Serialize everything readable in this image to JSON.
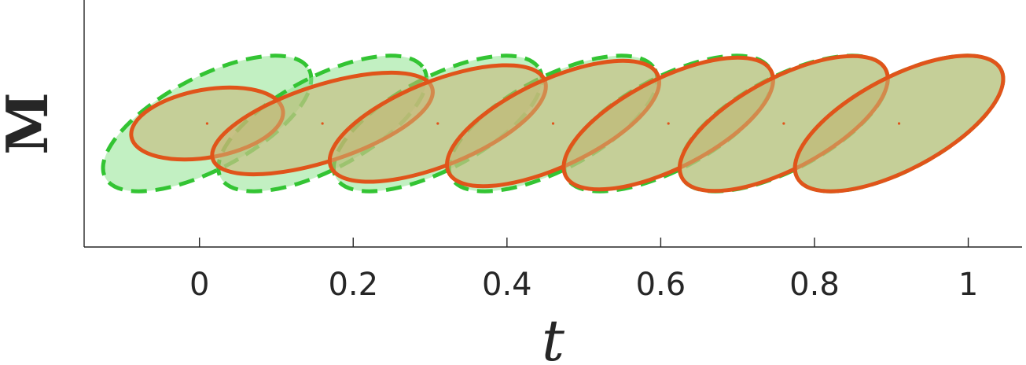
{
  "chart_data": {
    "type": "scatter",
    "title": "",
    "xlabel": "t",
    "ylabel": "M",
    "xlim": [
      -0.15,
      1.07
    ],
    "ylim": [
      -1.0,
      1.0
    ],
    "xticks": [
      0,
      0.2,
      0.4,
      0.6,
      0.8,
      1
    ],
    "xtick_labels": [
      "0",
      "0.2",
      "0.4",
      "0.6",
      "0.8",
      "1"
    ],
    "yticks_shown": false,
    "grid": false,
    "legend": "none",
    "centers_t": [
      0.01,
      0.16,
      0.31,
      0.46,
      0.61,
      0.76,
      0.91
    ],
    "center_m": 0.0,
    "series": [
      {
        "style": "dashed-outline-filled",
        "stroke_color": "#33c433",
        "fill_color": "#8fe38f",
        "ellipses": [
          {
            "t": 0.01,
            "m": 0.0,
            "semi_t": 0.15,
            "semi_m": 0.68,
            "tilt_deg": 28
          },
          {
            "t": 0.16,
            "m": 0.0,
            "semi_t": 0.15,
            "semi_m": 0.68,
            "tilt_deg": 28
          },
          {
            "t": 0.31,
            "m": 0.0,
            "semi_t": 0.15,
            "semi_m": 0.68,
            "tilt_deg": 28
          },
          {
            "t": 0.46,
            "m": 0.0,
            "semi_t": 0.15,
            "semi_m": 0.68,
            "tilt_deg": 28
          },
          {
            "t": 0.61,
            "m": 0.0,
            "semi_t": 0.15,
            "semi_m": 0.68,
            "tilt_deg": 28
          },
          {
            "t": 0.76,
            "m": 0.0,
            "semi_t": 0.15,
            "semi_m": 0.68,
            "tilt_deg": 28
          },
          {
            "t": 0.91,
            "m": 0.0,
            "semi_t": 0.15,
            "semi_m": 0.68,
            "tilt_deg": 28
          }
        ]
      },
      {
        "style": "solid-outline-filled",
        "stroke_color": "#e0541a",
        "fill_color": "#c9b477",
        "ellipses": [
          {
            "t": 0.01,
            "m": 0.0,
            "semi_t": 0.1,
            "semi_m": 0.5,
            "tilt_deg": 10
          },
          {
            "t": 0.16,
            "m": 0.0,
            "semi_t": 0.15,
            "semi_m": 0.56,
            "tilt_deg": 18
          },
          {
            "t": 0.31,
            "m": 0.0,
            "semi_t": 0.15,
            "semi_m": 0.62,
            "tilt_deg": 22
          },
          {
            "t": 0.46,
            "m": 0.0,
            "semi_t": 0.15,
            "semi_m": 0.64,
            "tilt_deg": 25
          },
          {
            "t": 0.61,
            "m": 0.0,
            "semi_t": 0.15,
            "semi_m": 0.66,
            "tilt_deg": 27
          },
          {
            "t": 0.76,
            "m": 0.0,
            "semi_t": 0.15,
            "semi_m": 0.67,
            "tilt_deg": 28
          },
          {
            "t": 0.91,
            "m": 0.0,
            "semi_t": 0.15,
            "semi_m": 0.68,
            "tilt_deg": 28
          }
        ]
      }
    ],
    "center_marker_color": "#e0541a"
  }
}
